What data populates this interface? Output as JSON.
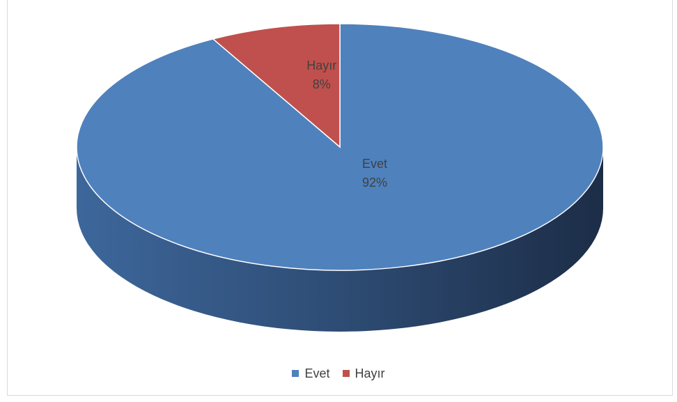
{
  "chart_data": {
    "type": "pie",
    "style": "3d",
    "categories": [
      "Evet",
      "Hayır"
    ],
    "values": [
      92,
      8
    ],
    "value_labels": [
      "92%",
      "8%"
    ],
    "colors": [
      "#4f81bd",
      "#c0504d"
    ],
    "legend_position": "bottom"
  }
}
